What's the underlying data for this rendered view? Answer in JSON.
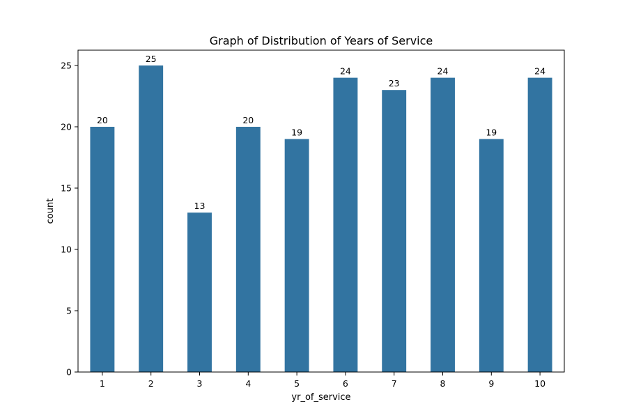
{
  "chart_data": {
    "type": "bar",
    "title": "Graph of Distribution of Years of Service",
    "xlabel": "yr_of_service",
    "ylabel": "count",
    "categories": [
      "1",
      "2",
      "3",
      "4",
      "5",
      "6",
      "7",
      "8",
      "9",
      "10"
    ],
    "values": [
      20,
      25,
      13,
      20,
      19,
      24,
      23,
      24,
      19,
      24
    ],
    "data_labels": [
      "20",
      "25",
      "13",
      "20",
      "19",
      "24",
      "23",
      "24",
      "19",
      "24"
    ],
    "yticks": [
      0,
      5,
      10,
      15,
      20,
      25
    ],
    "ytick_labels": [
      "0",
      "5",
      "10",
      "15",
      "20",
      "25"
    ],
    "ylim": [
      0,
      26.25
    ],
    "grid": false,
    "legend": "none",
    "bar_color": "#3274a1"
  }
}
